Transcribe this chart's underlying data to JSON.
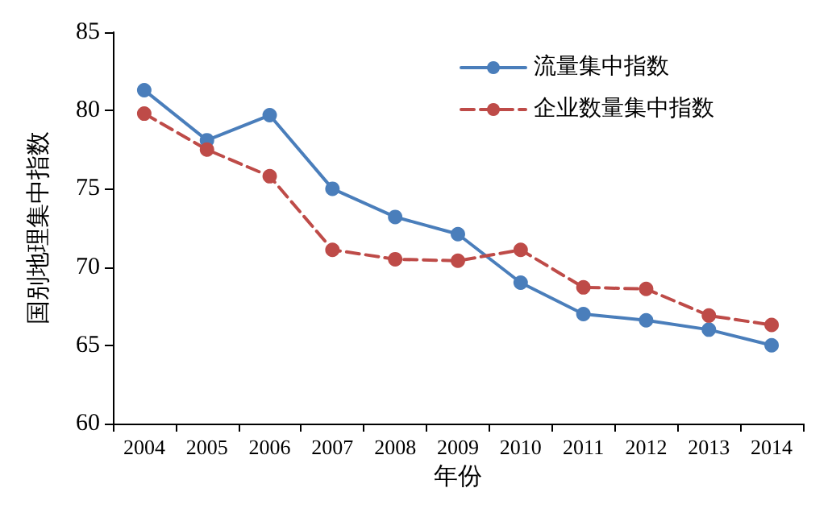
{
  "chart_data": {
    "type": "line",
    "xlabel": "年份",
    "ylabel": "国别地理集中指数",
    "categories": [
      "2004",
      "2005",
      "2006",
      "2007",
      "2008",
      "2009",
      "2010",
      "2011",
      "2012",
      "2013",
      "2014"
    ],
    "series": [
      {
        "name": "流量集中指数",
        "color": "#4a7ebb",
        "line_style": "solid",
        "values": [
          81.3,
          78.1,
          79.7,
          75.0,
          73.2,
          72.1,
          69.0,
          67.0,
          66.6,
          66.0,
          65.0
        ]
      },
      {
        "name": "企业数量集中指数",
        "color": "#be4b48",
        "line_style": "dashed",
        "values": [
          79.8,
          77.5,
          75.8,
          71.1,
          70.5,
          70.4,
          71.1,
          68.7,
          68.6,
          66.9,
          66.3
        ]
      }
    ],
    "ylim": [
      60,
      85
    ],
    "yticks": [
      60,
      65,
      70,
      75,
      80,
      85
    ],
    "grid": false,
    "legend": "top right",
    "marker": "circle"
  }
}
